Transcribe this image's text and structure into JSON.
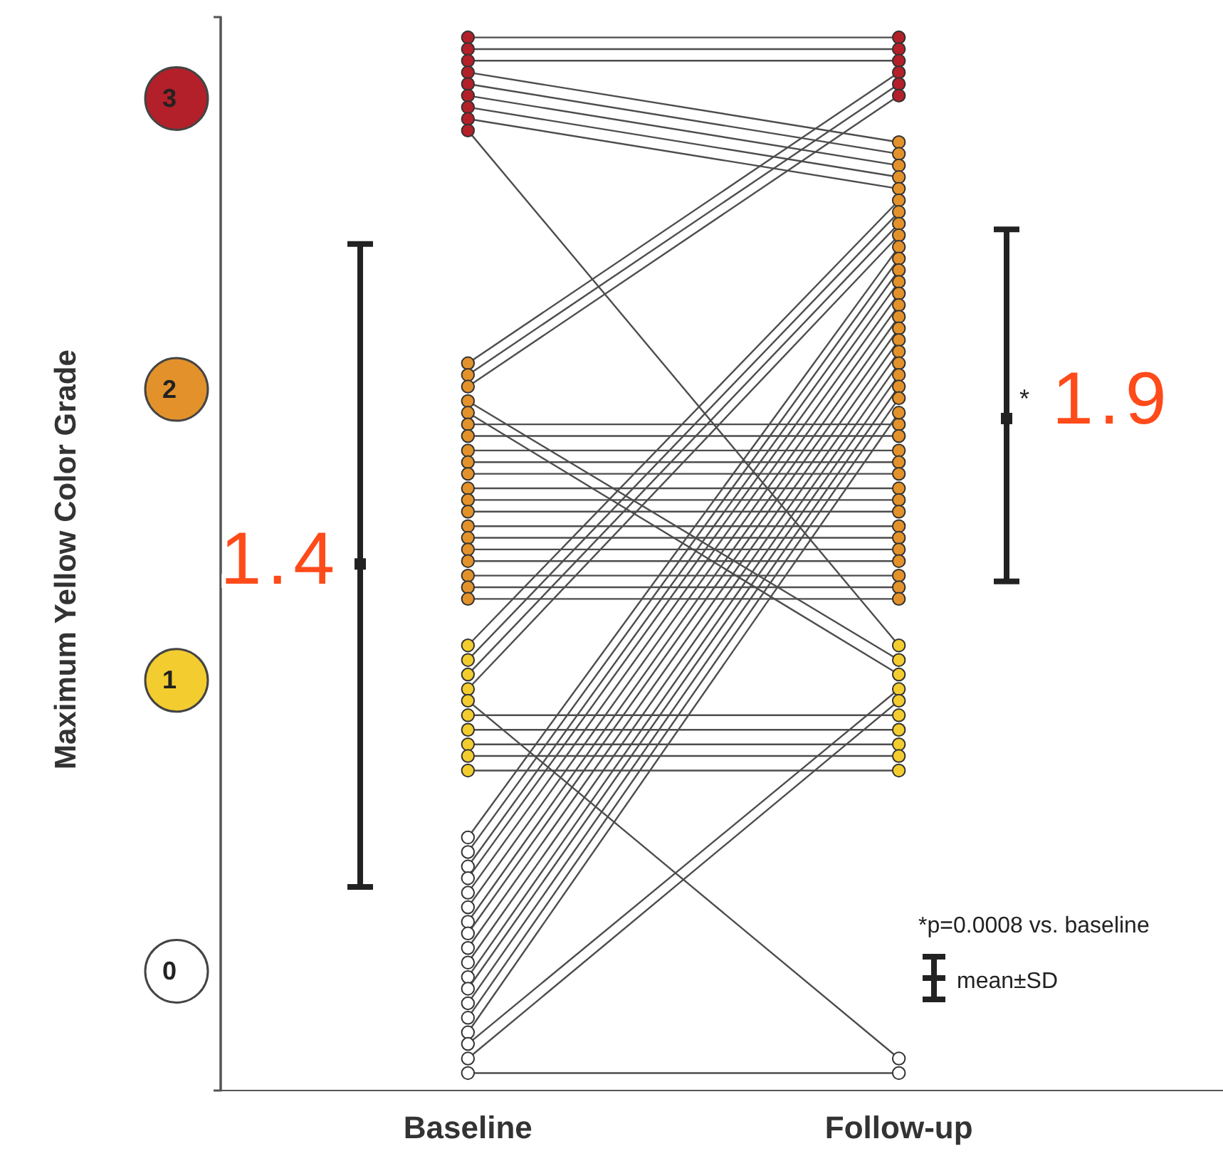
{
  "chart_data": {
    "type": "line",
    "ylabel": "Maximum Yellow Color Grade",
    "categories": [
      null,
      "Baseline",
      null,
      null,
      null,
      "Follow-up",
      null
    ],
    "ylim": [
      -0.41,
      3.28
    ],
    "yticks": [
      0,
      1,
      2,
      3
    ],
    "marker": "circle",
    "annotations": [
      "*",
      "*p=0.0008 vs. baseline",
      "mean±SD"
    ],
    "series": [
      {
        "color": "#4d4d4d",
        "values": [
          null,
          3.21,
          null,
          null,
          null,
          3.21,
          null
        ],
        "colors": [
          null,
          "#b3202a",
          null,
          null,
          null,
          "#b3202a",
          null
        ]
      },
      {
        "color": "#4d4d4d",
        "values": [
          null,
          3.17,
          null,
          null,
          null,
          3.17,
          null
        ],
        "colors": [
          null,
          "#b3202a",
          null,
          null,
          null,
          "#b3202a",
          null
        ]
      },
      {
        "color": "#4d4d4d",
        "values": [
          null,
          3.13,
          null,
          null,
          null,
          3.13,
          null
        ],
        "colors": [
          null,
          "#b3202a",
          null,
          null,
          null,
          "#b3202a",
          null
        ]
      },
      {
        "color": "#4d4d4d",
        "values": [
          null,
          3.09,
          null,
          null,
          null,
          2.85,
          null
        ],
        "colors": [
          null,
          "#b3202a",
          null,
          null,
          null,
          "#e3922b",
          null
        ]
      },
      {
        "color": "#4d4d4d",
        "values": [
          null,
          3.05,
          null,
          null,
          null,
          2.81,
          null
        ],
        "colors": [
          null,
          "#b3202a",
          null,
          null,
          null,
          "#e3922b",
          null
        ]
      },
      {
        "color": "#4d4d4d",
        "values": [
          null,
          3.01,
          null,
          null,
          null,
          2.77,
          null
        ],
        "colors": [
          null,
          "#b3202a",
          null,
          null,
          null,
          "#e3922b",
          null
        ]
      },
      {
        "color": "#4d4d4d",
        "values": [
          null,
          2.97,
          null,
          null,
          null,
          2.73,
          null
        ],
        "colors": [
          null,
          "#b3202a",
          null,
          null,
          null,
          "#e3922b",
          null
        ]
      },
      {
        "color": "#4d4d4d",
        "values": [
          null,
          2.93,
          null,
          null,
          null,
          2.69,
          null
        ],
        "colors": [
          null,
          "#b3202a",
          null,
          null,
          null,
          "#e3922b",
          null
        ]
      },
      {
        "color": "#4d4d4d",
        "values": [
          null,
          2.89,
          null,
          null,
          null,
          1.12,
          null
        ],
        "colors": [
          null,
          "#b3202a",
          null,
          null,
          null,
          "#f3cd2f",
          null
        ]
      },
      {
        "color": "#4d4d4d",
        "values": [
          null,
          2.09,
          null,
          null,
          null,
          3.09,
          null
        ],
        "colors": [
          null,
          "#e3922b",
          null,
          null,
          null,
          "#b3202a",
          null
        ]
      },
      {
        "color": "#4d4d4d",
        "values": [
          null,
          2.05,
          null,
          null,
          null,
          3.05,
          null
        ],
        "colors": [
          null,
          "#e3922b",
          null,
          null,
          null,
          "#b3202a",
          null
        ]
      },
      {
        "color": "#4d4d4d",
        "values": [
          null,
          2.01,
          null,
          null,
          null,
          3.01,
          null
        ],
        "colors": [
          null,
          "#e3922b",
          null,
          null,
          null,
          "#b3202a",
          null
        ]
      },
      {
        "color": "#4d4d4d",
        "values": [
          null,
          1.96,
          null,
          null,
          null,
          1.07,
          null
        ],
        "colors": [
          null,
          "#e3922b",
          null,
          null,
          null,
          "#f3cd2f",
          null
        ]
      },
      {
        "color": "#4d4d4d",
        "values": [
          null,
          1.92,
          null,
          null,
          null,
          1.02,
          null
        ],
        "colors": [
          null,
          "#e3922b",
          null,
          null,
          null,
          "#f3cd2f",
          null
        ]
      },
      {
        "color": "#4d4d4d",
        "values": [
          null,
          1.88,
          null,
          null,
          null,
          1.88,
          null
        ],
        "colors": [
          null,
          "#e3922b",
          null,
          null,
          null,
          "#e3922b",
          null
        ]
      },
      {
        "color": "#4d4d4d",
        "values": [
          null,
          1.84,
          null,
          null,
          null,
          1.84,
          null
        ],
        "colors": [
          null,
          "#e3922b",
          null,
          null,
          null,
          "#e3922b",
          null
        ]
      },
      {
        "color": "#4d4d4d",
        "values": [
          null,
          1.79,
          null,
          null,
          null,
          1.79,
          null
        ],
        "colors": [
          null,
          "#e3922b",
          null,
          null,
          null,
          "#e3922b",
          null
        ]
      },
      {
        "color": "#4d4d4d",
        "values": [
          null,
          1.75,
          null,
          null,
          null,
          1.75,
          null
        ],
        "colors": [
          null,
          "#e3922b",
          null,
          null,
          null,
          "#e3922b",
          null
        ]
      },
      {
        "color": "#4d4d4d",
        "values": [
          null,
          1.71,
          null,
          null,
          null,
          1.71,
          null
        ],
        "colors": [
          null,
          "#e3922b",
          null,
          null,
          null,
          "#e3922b",
          null
        ]
      },
      {
        "color": "#4d4d4d",
        "values": [
          null,
          1.66,
          null,
          null,
          null,
          1.66,
          null
        ],
        "colors": [
          null,
          "#e3922b",
          null,
          null,
          null,
          "#e3922b",
          null
        ]
      },
      {
        "color": "#4d4d4d",
        "values": [
          null,
          1.62,
          null,
          null,
          null,
          1.62,
          null
        ],
        "colors": [
          null,
          "#e3922b",
          null,
          null,
          null,
          "#e3922b",
          null
        ]
      },
      {
        "color": "#4d4d4d",
        "values": [
          null,
          1.58,
          null,
          null,
          null,
          1.58,
          null
        ],
        "colors": [
          null,
          "#e3922b",
          null,
          null,
          null,
          "#e3922b",
          null
        ]
      },
      {
        "color": "#4d4d4d",
        "values": [
          null,
          1.53,
          null,
          null,
          null,
          1.53,
          null
        ],
        "colors": [
          null,
          "#e3922b",
          null,
          null,
          null,
          "#e3922b",
          null
        ]
      },
      {
        "color": "#4d4d4d",
        "values": [
          null,
          1.49,
          null,
          null,
          null,
          1.49,
          null
        ],
        "colors": [
          null,
          "#e3922b",
          null,
          null,
          null,
          "#e3922b",
          null
        ]
      },
      {
        "color": "#4d4d4d",
        "values": [
          null,
          1.45,
          null,
          null,
          null,
          1.45,
          null
        ],
        "colors": [
          null,
          "#e3922b",
          null,
          null,
          null,
          "#e3922b",
          null
        ]
      },
      {
        "color": "#4d4d4d",
        "values": [
          null,
          1.41,
          null,
          null,
          null,
          1.41,
          null
        ],
        "colors": [
          null,
          "#e3922b",
          null,
          null,
          null,
          "#e3922b",
          null
        ]
      },
      {
        "color": "#4d4d4d",
        "values": [
          null,
          1.36,
          null,
          null,
          null,
          1.36,
          null
        ],
        "colors": [
          null,
          "#e3922b",
          null,
          null,
          null,
          "#e3922b",
          null
        ]
      },
      {
        "color": "#4d4d4d",
        "values": [
          null,
          1.32,
          null,
          null,
          null,
          1.32,
          null
        ],
        "colors": [
          null,
          "#e3922b",
          null,
          null,
          null,
          "#e3922b",
          null
        ]
      },
      {
        "color": "#4d4d4d",
        "values": [
          null,
          1.28,
          null,
          null,
          null,
          1.28,
          null
        ],
        "colors": [
          null,
          "#e3922b",
          null,
          null,
          null,
          "#e3922b",
          null
        ]
      },
      {
        "color": "#4d4d4d",
        "values": [
          null,
          1.12,
          null,
          null,
          null,
          2.65,
          null
        ],
        "colors": [
          null,
          "#f3cd2f",
          null,
          null,
          null,
          "#e3922b",
          null
        ]
      },
      {
        "color": "#4d4d4d",
        "values": [
          null,
          1.07,
          null,
          null,
          null,
          2.61,
          null
        ],
        "colors": [
          null,
          "#f3cd2f",
          null,
          null,
          null,
          "#e3922b",
          null
        ]
      },
      {
        "color": "#4d4d4d",
        "values": [
          null,
          1.02,
          null,
          null,
          null,
          2.57,
          null
        ],
        "colors": [
          null,
          "#f3cd2f",
          null,
          null,
          null,
          "#e3922b",
          null
        ]
      },
      {
        "color": "#4d4d4d",
        "values": [
          null,
          0.97,
          null,
          null,
          null,
          2.53,
          null
        ],
        "colors": [
          null,
          "#f3cd2f",
          null,
          null,
          null,
          "#e3922b",
          null
        ]
      },
      {
        "color": "#4d4d4d",
        "values": [
          null,
          0.93,
          null,
          null,
          null,
          -0.3,
          null
        ],
        "colors": [
          null,
          "#f3cd2f",
          null,
          null,
          null,
          "#ffffff",
          null
        ]
      },
      {
        "color": "#4d4d4d",
        "values": [
          null,
          0.88,
          null,
          null,
          null,
          0.88,
          null
        ],
        "colors": [
          null,
          "#f3cd2f",
          null,
          null,
          null,
          "#f3cd2f",
          null
        ]
      },
      {
        "color": "#4d4d4d",
        "values": [
          null,
          0.83,
          null,
          null,
          null,
          0.83,
          null
        ],
        "colors": [
          null,
          "#f3cd2f",
          null,
          null,
          null,
          "#f3cd2f",
          null
        ]
      },
      {
        "color": "#4d4d4d",
        "values": [
          null,
          0.78,
          null,
          null,
          null,
          0.78,
          null
        ],
        "colors": [
          null,
          "#f3cd2f",
          null,
          null,
          null,
          "#f3cd2f",
          null
        ]
      },
      {
        "color": "#4d4d4d",
        "values": [
          null,
          0.74,
          null,
          null,
          null,
          0.74,
          null
        ],
        "colors": [
          null,
          "#f3cd2f",
          null,
          null,
          null,
          "#f3cd2f",
          null
        ]
      },
      {
        "color": "#4d4d4d",
        "values": [
          null,
          0.69,
          null,
          null,
          null,
          0.69,
          null
        ],
        "colors": [
          null,
          "#f3cd2f",
          null,
          null,
          null,
          "#f3cd2f",
          null
        ]
      },
      {
        "color": "#4d4d4d",
        "values": [
          null,
          0.46,
          null,
          null,
          null,
          2.49,
          null
        ],
        "colors": [
          null,
          "#ffffff",
          null,
          null,
          null,
          "#e3922b",
          null
        ]
      },
      {
        "color": "#4d4d4d",
        "values": [
          null,
          0.41,
          null,
          null,
          null,
          2.45,
          null
        ],
        "colors": [
          null,
          "#ffffff",
          null,
          null,
          null,
          "#e3922b",
          null
        ]
      },
      {
        "color": "#4d4d4d",
        "values": [
          null,
          0.36,
          null,
          null,
          null,
          2.41,
          null
        ],
        "colors": [
          null,
          "#ffffff",
          null,
          null,
          null,
          "#e3922b",
          null
        ]
      },
      {
        "color": "#4d4d4d",
        "values": [
          null,
          0.32,
          null,
          null,
          null,
          2.37,
          null
        ],
        "colors": [
          null,
          "#ffffff",
          null,
          null,
          null,
          "#e3922b",
          null
        ]
      },
      {
        "color": "#4d4d4d",
        "values": [
          null,
          0.27,
          null,
          null,
          null,
          2.33,
          null
        ],
        "colors": [
          null,
          "#ffffff",
          null,
          null,
          null,
          "#e3922b",
          null
        ]
      },
      {
        "color": "#4d4d4d",
        "values": [
          null,
          0.22,
          null,
          null,
          null,
          2.29,
          null
        ],
        "colors": [
          null,
          "#ffffff",
          null,
          null,
          null,
          "#e3922b",
          null
        ]
      },
      {
        "color": "#4d4d4d",
        "values": [
          null,
          0.17,
          null,
          null,
          null,
          2.25,
          null
        ],
        "colors": [
          null,
          "#ffffff",
          null,
          null,
          null,
          "#e3922b",
          null
        ]
      },
      {
        "color": "#4d4d4d",
        "values": [
          null,
          0.13,
          null,
          null,
          null,
          2.21,
          null
        ],
        "colors": [
          null,
          "#ffffff",
          null,
          null,
          null,
          "#e3922b",
          null
        ]
      },
      {
        "color": "#4d4d4d",
        "values": [
          null,
          0.08,
          null,
          null,
          null,
          2.17,
          null
        ],
        "colors": [
          null,
          "#ffffff",
          null,
          null,
          null,
          "#e3922b",
          null
        ]
      },
      {
        "color": "#4d4d4d",
        "values": [
          null,
          0.03,
          null,
          null,
          null,
          2.13,
          null
        ],
        "colors": [
          null,
          "#ffffff",
          null,
          null,
          null,
          "#e3922b",
          null
        ]
      },
      {
        "color": "#4d4d4d",
        "values": [
          null,
          -0.02,
          null,
          null,
          null,
          2.09,
          null
        ],
        "colors": [
          null,
          "#ffffff",
          null,
          null,
          null,
          "#e3922b",
          null
        ]
      },
      {
        "color": "#4d4d4d",
        "values": [
          null,
          -0.06,
          null,
          null,
          null,
          2.05,
          null
        ],
        "colors": [
          null,
          "#ffffff",
          null,
          null,
          null,
          "#e3922b",
          null
        ]
      },
      {
        "color": "#4d4d4d",
        "values": [
          null,
          -0.11,
          null,
          null,
          null,
          2.01,
          null
        ],
        "colors": [
          null,
          "#ffffff",
          null,
          null,
          null,
          "#e3922b",
          null
        ]
      },
      {
        "color": "#4d4d4d",
        "values": [
          null,
          -0.16,
          null,
          null,
          null,
          1.97,
          null
        ],
        "colors": [
          null,
          "#ffffff",
          null,
          null,
          null,
          "#e3922b",
          null
        ]
      },
      {
        "color": "#4d4d4d",
        "values": [
          null,
          -0.21,
          null,
          null,
          null,
          1.92,
          null
        ],
        "colors": [
          null,
          "#ffffff",
          null,
          null,
          null,
          "#e3922b",
          null
        ]
      },
      {
        "color": "#4d4d4d",
        "values": [
          null,
          -0.25,
          null,
          null,
          null,
          0.97,
          null
        ],
        "colors": [
          null,
          "#ffffff",
          null,
          null,
          null,
          "#f3cd2f",
          null
        ]
      },
      {
        "color": "#4d4d4d",
        "values": [
          null,
          -0.3,
          null,
          null,
          null,
          0.93,
          null
        ],
        "colors": [
          null,
          "#ffffff",
          null,
          null,
          null,
          "#f3cd2f",
          null
        ]
      },
      {
        "color": "#4d4d4d",
        "values": [
          null,
          -0.35,
          null,
          null,
          null,
          -0.35,
          null
        ],
        "colors": [
          null,
          "#ffffff",
          null,
          null,
          null,
          "#ffffff",
          null
        ]
      },
      {
        "type": "scatter",
        "marker": "square",
        "color": "#222222",
        "values": [
          1.4,
          null,
          null,
          null,
          null,
          null,
          1.9
        ],
        "errors": [
          [
            0.29,
            2.5
          ],
          null,
          null,
          null,
          null,
          null,
          [
            1.34,
            2.55
          ]
        ],
        "value_labels": [
          "1.4",
          null,
          null,
          null,
          null,
          null,
          "1.9"
        ]
      }
    ]
  }
}
